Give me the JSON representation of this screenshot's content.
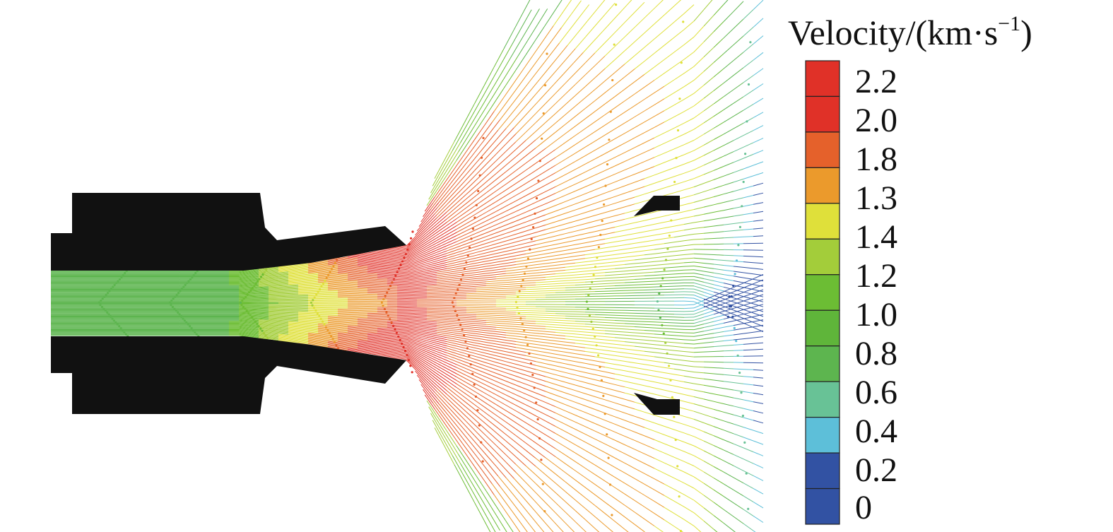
{
  "legend": {
    "title": "Velocity/(km·s",
    "title_exp": "−1",
    "title_close": ")",
    "tick_labels": [
      "2.2",
      "2.0",
      "1.8",
      "1.3",
      "1.4",
      "1.2",
      "1.0",
      "0.8",
      "0.6",
      "0.4",
      "0.2",
      "0"
    ],
    "band_colors": [
      "#e03128",
      "#e03128",
      "#e5612b",
      "#eb9a2c",
      "#dfe03a",
      "#a3cd3a",
      "#6cbd34",
      "#5fb53a",
      "#5db54f",
      "#68c296",
      "#5dbfd9",
      "#3252a3",
      "#3252a3"
    ]
  },
  "geometry_colors": {
    "body": "#111111"
  }
}
